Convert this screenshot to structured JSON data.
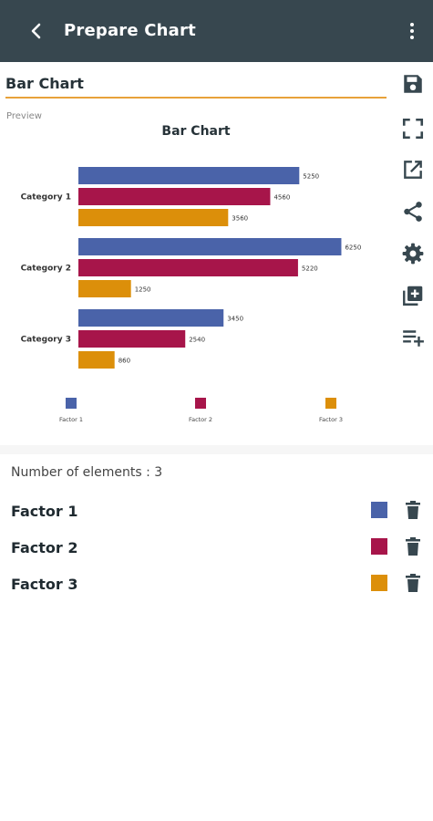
{
  "appbar": {
    "title": "Prepare Chart",
    "back_icon": "arrow-back-icon",
    "menu_icon": "more-vert-icon"
  },
  "chart_name_field": {
    "value": "Bar Chart"
  },
  "preview_label": "Preview",
  "toolbar": [
    "save-icon",
    "fullscreen-icon",
    "open-external-icon",
    "share-icon",
    "settings-icon",
    "add-box-icon",
    "playlist-add-icon"
  ],
  "colors": {
    "factor1": "#4a63a9",
    "factor2": "#a7154a",
    "factor3": "#dc8f0a",
    "accent": "#e8a23a",
    "appbar": "#37474f"
  },
  "chart_data": {
    "type": "bar",
    "orientation": "horizontal",
    "title": "Bar Chart",
    "categories": [
      "Category 1",
      "Category 2",
      "Category 3"
    ],
    "series": [
      {
        "name": "Factor 1",
        "values": [
          5250,
          6250,
          3450
        ]
      },
      {
        "name": "Factor 2",
        "values": [
          4560,
          5220,
          2540
        ]
      },
      {
        "name": "Factor 3",
        "values": [
          3560,
          1250,
          860
        ]
      }
    ],
    "legend": "bottom"
  },
  "elements": {
    "count_label": "Number of elements : 3",
    "items": [
      {
        "name": "Factor 1",
        "color": "#4a63a9"
      },
      {
        "name": "Factor 2",
        "color": "#a7154a"
      },
      {
        "name": "Factor 3",
        "color": "#dc8f0a"
      }
    ]
  }
}
